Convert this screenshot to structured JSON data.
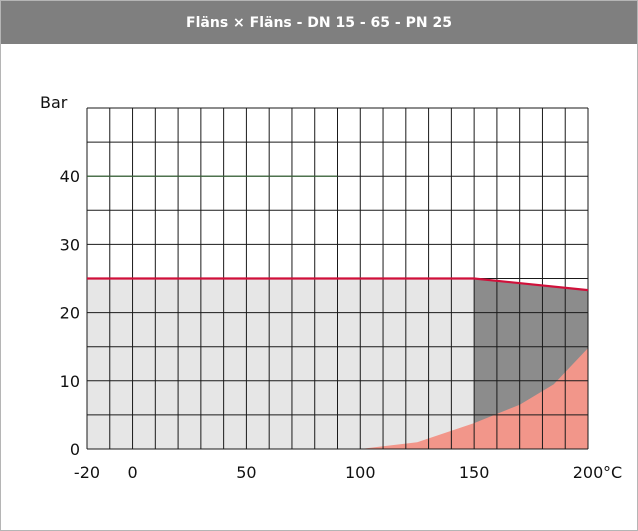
{
  "header": {
    "title": "Fläns × Fläns - DN 15 - 65 - PN 25"
  },
  "chart_data": {
    "type": "area",
    "title": "Fläns × Fläns - DN 15 - 65 - PN 25",
    "ylabel": "Bar",
    "x_unit_label": "°C",
    "xlim": [
      -20,
      200
    ],
    "ylim": [
      0,
      50
    ],
    "x_ticks": [
      {
        "value": -20,
        "label": "-20"
      },
      {
        "value": 0,
        "label": "0"
      },
      {
        "value": 50,
        "label": "50"
      },
      {
        "value": 100,
        "label": "100"
      },
      {
        "value": 150,
        "label": "150"
      },
      {
        "value": 200,
        "label": "200"
      }
    ],
    "y_ticks": [
      {
        "value": 0,
        "label": "0"
      },
      {
        "value": 10,
        "label": "10"
      },
      {
        "value": 20,
        "label": "20"
      },
      {
        "value": 30,
        "label": "30"
      },
      {
        "value": 40,
        "label": "40"
      }
    ],
    "grid": true,
    "grid_x_step": 10,
    "grid_y_step": 5,
    "series": [
      {
        "key": "max_pressure_line",
        "points": [
          [
            -20,
            25
          ],
          [
            150,
            25
          ],
          [
            200,
            23.3
          ]
        ],
        "color": "#d0103a"
      },
      {
        "key": "allowed_region",
        "points": [
          [
            -20,
            0
          ],
          [
            -20,
            25
          ],
          [
            150,
            25
          ],
          [
            150,
            0
          ]
        ],
        "color": "#e6e6e6"
      },
      {
        "key": "elevated_temperature_region",
        "points": [
          [
            150,
            0
          ],
          [
            150,
            25
          ],
          [
            200,
            23.3
          ],
          [
            200,
            0
          ]
        ],
        "color": "#8c8c8c"
      },
      {
        "key": "restricted_region",
        "points": [
          [
            100,
            0
          ],
          [
            125,
            1
          ],
          [
            150,
            3.8
          ],
          [
            170,
            6.5
          ],
          [
            185,
            9.5
          ],
          [
            200,
            14.8
          ],
          [
            200,
            0
          ]
        ],
        "color": "#f2968a"
      },
      {
        "key": "reference_line",
        "points": [
          [
            -20,
            40
          ],
          [
            90,
            40
          ]
        ],
        "color": "#3a6a3a"
      }
    ]
  }
}
